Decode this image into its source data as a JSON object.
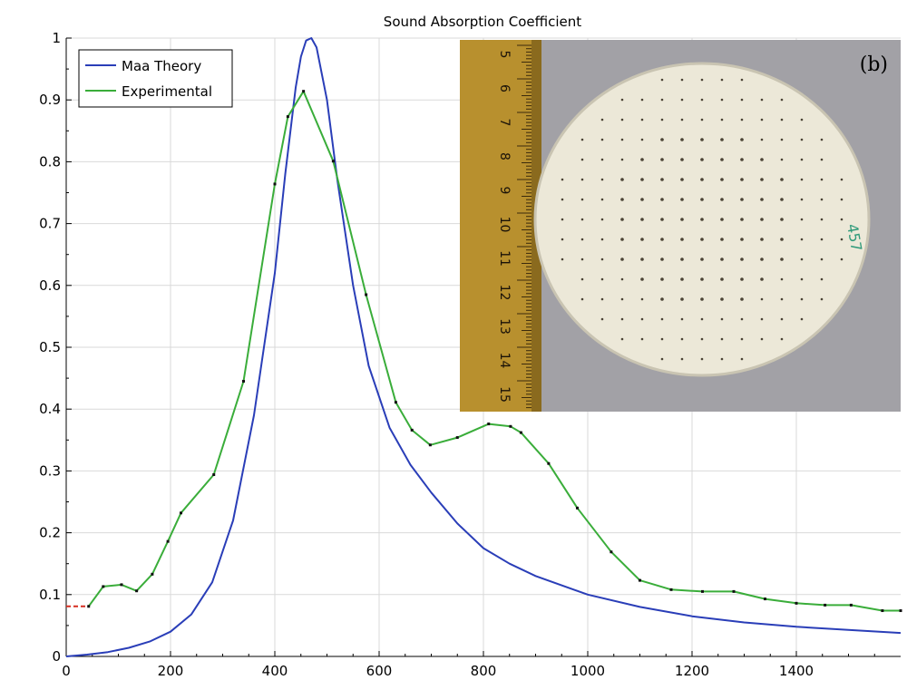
{
  "chart_data": {
    "type": "line",
    "title": "Sound Absorption Coefficient",
    "xlabel": "",
    "ylabel": "",
    "xlim": [
      0,
      1600
    ],
    "ylim": [
      0,
      1
    ],
    "x_ticks": [
      "0",
      "200",
      "400",
      "600",
      "800",
      "1000",
      "1200",
      "1400"
    ],
    "y_ticks": [
      "0",
      "0.1",
      "0.2",
      "0.3",
      "0.4",
      "0.5",
      "0.6",
      "0.7",
      "0.8",
      "0.9",
      "1"
    ],
    "grid": true,
    "legend_position": "top-left",
    "series": [
      {
        "name": "Maa Theory",
        "color": "#2a3eb8",
        "x": [
          0,
          40,
          80,
          120,
          160,
          200,
          240,
          280,
          320,
          360,
          400,
          420,
          440,
          450,
          460,
          470,
          480,
          500,
          520,
          550,
          580,
          620,
          660,
          700,
          750,
          800,
          850,
          900,
          1000,
          1100,
          1200,
          1300,
          1400,
          1500,
          1600
        ],
        "y": [
          0.0,
          0.003,
          0.007,
          0.014,
          0.024,
          0.04,
          0.068,
          0.12,
          0.22,
          0.39,
          0.62,
          0.78,
          0.92,
          0.97,
          0.996,
          1.0,
          0.985,
          0.9,
          0.77,
          0.6,
          0.47,
          0.37,
          0.31,
          0.265,
          0.215,
          0.175,
          0.15,
          0.13,
          0.1,
          0.08,
          0.065,
          0.055,
          0.048,
          0.043,
          0.038
        ]
      },
      {
        "name": "Experimental",
        "color": "#3aad3a",
        "x": [
          43,
          71,
          106,
          135,
          165,
          195,
          220,
          283,
          340,
          400,
          425,
          455,
          512,
          575,
          632,
          663,
          698,
          750,
          810,
          852,
          872,
          925,
          980,
          1045,
          1100,
          1160,
          1220,
          1280,
          1340,
          1400,
          1455,
          1505,
          1565,
          1600
        ],
        "y": [
          0.081,
          0.113,
          0.116,
          0.106,
          0.133,
          0.186,
          0.232,
          0.294,
          0.445,
          0.764,
          0.873,
          0.914,
          0.801,
          0.585,
          0.411,
          0.366,
          0.342,
          0.354,
          0.376,
          0.372,
          0.362,
          0.312,
          0.24,
          0.169,
          0.123,
          0.108,
          0.105,
          0.105,
          0.093,
          0.086,
          0.083,
          0.083,
          0.074,
          0.074
        ]
      }
    ],
    "reference_marks": [
      {
        "color": "#d62d20",
        "x": [
          0,
          43
        ],
        "y": [
          0.081,
          0.081
        ]
      },
      {
        "color": "#d62d20",
        "x": [
          1565,
          1600
        ],
        "y": [
          0.074,
          0.074
        ]
      }
    ]
  },
  "inset_photo": {
    "label": "(b)",
    "ruler_numbers": [
      "5",
      "6",
      "7",
      "8",
      "9",
      "10",
      "11",
      "12",
      "13",
      "14",
      "15"
    ],
    "handwritten_note": "457"
  },
  "colors": {
    "grid": "#d9d9d9",
    "axis": "#000000",
    "ruler": "#b8902e",
    "disc": "#ece8d8",
    "photo_background": "#8f8e94"
  }
}
